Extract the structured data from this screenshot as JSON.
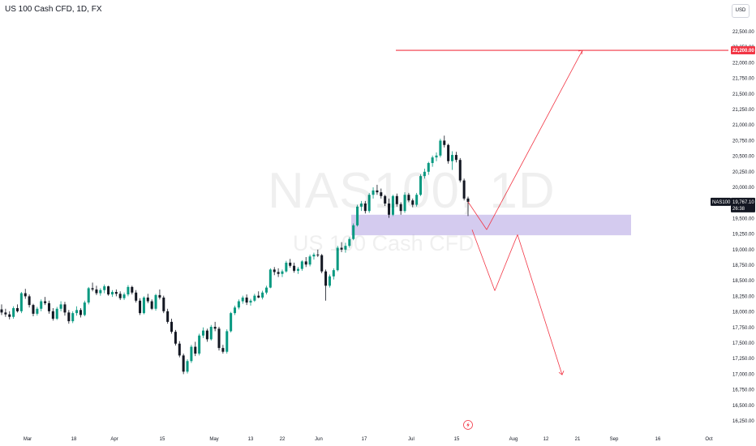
{
  "header": {
    "title": "US 100 Cash CFD, 1D, FX",
    "currency": "USD"
  },
  "watermark": {
    "symbol": "NAS100, 1D",
    "description": "US 100 Cash CFD"
  },
  "colors": {
    "up": "#089981",
    "down": "#131722",
    "projection": "#f23645",
    "zone": "#ccc2ec"
  },
  "chart_data": {
    "type": "candlestick",
    "y_ticks": [
      "22,500.00",
      "22,250.00",
      "22,000.00",
      "21,750.00",
      "21,500.00",
      "21,250.00",
      "21,000.00",
      "20,750.00",
      "20,500.00",
      "20,250.00",
      "20,000.00",
      "19,500.00",
      "19,250.00",
      "19,000.00",
      "18,750.00",
      "18,500.00",
      "18,250.00",
      "18,000.00",
      "17,750.00",
      "17,500.00",
      "17,250.00",
      "17,000.00",
      "16,750.00",
      "16,500.00",
      "16,250.00"
    ],
    "x_ticks": [
      "Mar",
      "18",
      "Apr",
      "15",
      "May",
      "13",
      "22",
      "Jun",
      "17",
      "Jul",
      "15",
      "Aug",
      "12",
      "21",
      "Sep",
      "16",
      "Oct"
    ],
    "ylim": [
      16200,
      22620
    ],
    "last_price": {
      "symbol": "NAS100",
      "value": "19,767.10",
      "countdown": "26:38"
    },
    "target_level": {
      "value": 22200,
      "label": "22,200.00"
    },
    "demand_zone": {
      "low": 19230,
      "high": 19560
    },
    "candles": [
      [
        18040,
        18120,
        17950,
        17990
      ],
      [
        17990,
        18050,
        17920,
        17960
      ],
      [
        17960,
        18010,
        17880,
        17920
      ],
      [
        17920,
        18090,
        17890,
        18060
      ],
      [
        18060,
        18120,
        17990,
        18010
      ],
      [
        18010,
        18320,
        17980,
        18300
      ],
      [
        18300,
        18370,
        18210,
        18250
      ],
      [
        18250,
        18280,
        18070,
        18110
      ],
      [
        18110,
        18130,
        17930,
        17970
      ],
      [
        17970,
        18080,
        17940,
        18050
      ],
      [
        18050,
        18200,
        18010,
        18170
      ],
      [
        18170,
        18240,
        18110,
        18140
      ],
      [
        18140,
        18180,
        17970,
        18010
      ],
      [
        18010,
        18060,
        17860,
        17890
      ],
      [
        17890,
        18080,
        17870,
        18050
      ],
      [
        18050,
        18170,
        18010,
        18120
      ],
      [
        18120,
        18160,
        17940,
        17990
      ],
      [
        17990,
        18030,
        17810,
        17850
      ],
      [
        17850,
        18010,
        17820,
        17980
      ],
      [
        17980,
        18090,
        17940,
        18030
      ],
      [
        18030,
        18060,
        17910,
        17950
      ],
      [
        17950,
        18180,
        17930,
        18150
      ],
      [
        18150,
        18400,
        18120,
        18380
      ],
      [
        18380,
        18470,
        18330,
        18360
      ],
      [
        18360,
        18420,
        18270,
        18300
      ],
      [
        18300,
        18380,
        18260,
        18350
      ],
      [
        18350,
        18440,
        18300,
        18410
      ],
      [
        18410,
        18420,
        18260,
        18280
      ],
      [
        18280,
        18350,
        18240,
        18320
      ],
      [
        18320,
        18360,
        18250,
        18290
      ],
      [
        18290,
        18330,
        18190,
        18220
      ],
      [
        18220,
        18310,
        18190,
        18280
      ],
      [
        18280,
        18430,
        18250,
        18400
      ],
      [
        18400,
        18420,
        18280,
        18310
      ],
      [
        18310,
        18350,
        18150,
        18180
      ],
      [
        18180,
        18220,
        17950,
        17980
      ],
      [
        17980,
        18250,
        17960,
        18230
      ],
      [
        18230,
        18290,
        18140,
        18170
      ],
      [
        18170,
        18200,
        18030,
        18050
      ],
      [
        18050,
        18290,
        18020,
        18270
      ],
      [
        18270,
        18360,
        18200,
        18230
      ],
      [
        18230,
        18260,
        17980,
        18010
      ],
      [
        18010,
        18050,
        17810,
        17840
      ],
      [
        17840,
        17890,
        17650,
        17680
      ],
      [
        17680,
        17710,
        17460,
        17490
      ],
      [
        17490,
        17530,
        17270,
        17300
      ],
      [
        17300,
        17330,
        17000,
        17040
      ],
      [
        17040,
        17240,
        17010,
        17210
      ],
      [
        17210,
        17470,
        17180,
        17440
      ],
      [
        17440,
        17520,
        17290,
        17330
      ],
      [
        17330,
        17650,
        17300,
        17620
      ],
      [
        17620,
        17750,
        17580,
        17700
      ],
      [
        17700,
        17730,
        17520,
        17560
      ],
      [
        17560,
        17790,
        17540,
        17760
      ],
      [
        17760,
        17840,
        17690,
        17730
      ],
      [
        17730,
        17760,
        17380,
        17420
      ],
      [
        17420,
        17470,
        17330,
        17360
      ],
      [
        17360,
        17720,
        17330,
        17690
      ],
      [
        17690,
        18000,
        17670,
        17980
      ],
      [
        17980,
        18100,
        17950,
        18070
      ],
      [
        18070,
        18200,
        18040,
        18170
      ],
      [
        18170,
        18260,
        18130,
        18230
      ],
      [
        18230,
        18280,
        18110,
        18150
      ],
      [
        18150,
        18210,
        18100,
        18180
      ],
      [
        18180,
        18290,
        18160,
        18260
      ],
      [
        18260,
        18330,
        18220,
        18230
      ],
      [
        18230,
        18340,
        18200,
        18310
      ],
      [
        18310,
        18420,
        18280,
        18390
      ],
      [
        18390,
        18700,
        18380,
        18680
      ],
      [
        18680,
        18720,
        18590,
        18640
      ],
      [
        18640,
        18700,
        18560,
        18610
      ],
      [
        18610,
        18680,
        18560,
        18650
      ],
      [
        18650,
        18820,
        18630,
        18790
      ],
      [
        18790,
        18850,
        18710,
        18740
      ],
      [
        18740,
        18790,
        18630,
        18660
      ],
      [
        18660,
        18720,
        18610,
        18690
      ],
      [
        18690,
        18830,
        18660,
        18810
      ],
      [
        18810,
        18880,
        18720,
        18760
      ],
      [
        18760,
        18920,
        18730,
        18890
      ],
      [
        18890,
        18950,
        18840,
        18920
      ],
      [
        18920,
        19000,
        18880,
        18910
      ],
      [
        18910,
        18930,
        18620,
        18650
      ],
      [
        18650,
        18680,
        18180,
        18420
      ],
      [
        18420,
        18600,
        18390,
        18570
      ],
      [
        18570,
        18700,
        18520,
        18670
      ],
      [
        18670,
        19060,
        18650,
        19030
      ],
      [
        19030,
        19120,
        18960,
        19000
      ],
      [
        19000,
        19110,
        18950,
        19060
      ],
      [
        19060,
        19200,
        19030,
        19170
      ],
      [
        19170,
        19420,
        19150,
        19390
      ],
      [
        19390,
        19720,
        19370,
        19690
      ],
      [
        19690,
        19780,
        19620,
        19740
      ],
      [
        19740,
        19780,
        19580,
        19620
      ],
      [
        19620,
        19910,
        19590,
        19880
      ],
      [
        19880,
        20000,
        19820,
        19950
      ],
      [
        19950,
        20040,
        19880,
        19920
      ],
      [
        19920,
        19980,
        19820,
        19860
      ],
      [
        19860,
        19880,
        19700,
        19740
      ],
      [
        19740,
        19820,
        19510,
        19560
      ],
      [
        19560,
        19880,
        19540,
        19860
      ],
      [
        19860,
        19900,
        19690,
        19730
      ],
      [
        19730,
        19760,
        19560,
        19620
      ],
      [
        19620,
        19920,
        19590,
        19880
      ],
      [
        19880,
        19910,
        19760,
        19790
      ],
      [
        19790,
        19820,
        19680,
        19720
      ],
      [
        19720,
        19910,
        19690,
        19880
      ],
      [
        19880,
        20210,
        19860,
        20180
      ],
      [
        20180,
        20300,
        20140,
        20250
      ],
      [
        20250,
        20410,
        20200,
        20390
      ],
      [
        20390,
        20510,
        20330,
        20480
      ],
      [
        20480,
        20560,
        20420,
        20510
      ],
      [
        20510,
        20780,
        20480,
        20750
      ],
      [
        20750,
        20830,
        20640,
        20680
      ],
      [
        20680,
        20700,
        20380,
        20420
      ],
      [
        20420,
        20580,
        20280,
        20520
      ],
      [
        20520,
        20570,
        20400,
        20440
      ],
      [
        20440,
        20470,
        20080,
        20110
      ],
      [
        20110,
        20140,
        19790,
        19820
      ],
      [
        19820,
        19850,
        19540,
        19767
      ]
    ],
    "projection_up": [
      [
        19320,
        "from candle end"
      ],
      [
        22200,
        "target"
      ]
    ],
    "projection_down": [
      19320,
      18340,
      19240,
      16990
    ]
  }
}
